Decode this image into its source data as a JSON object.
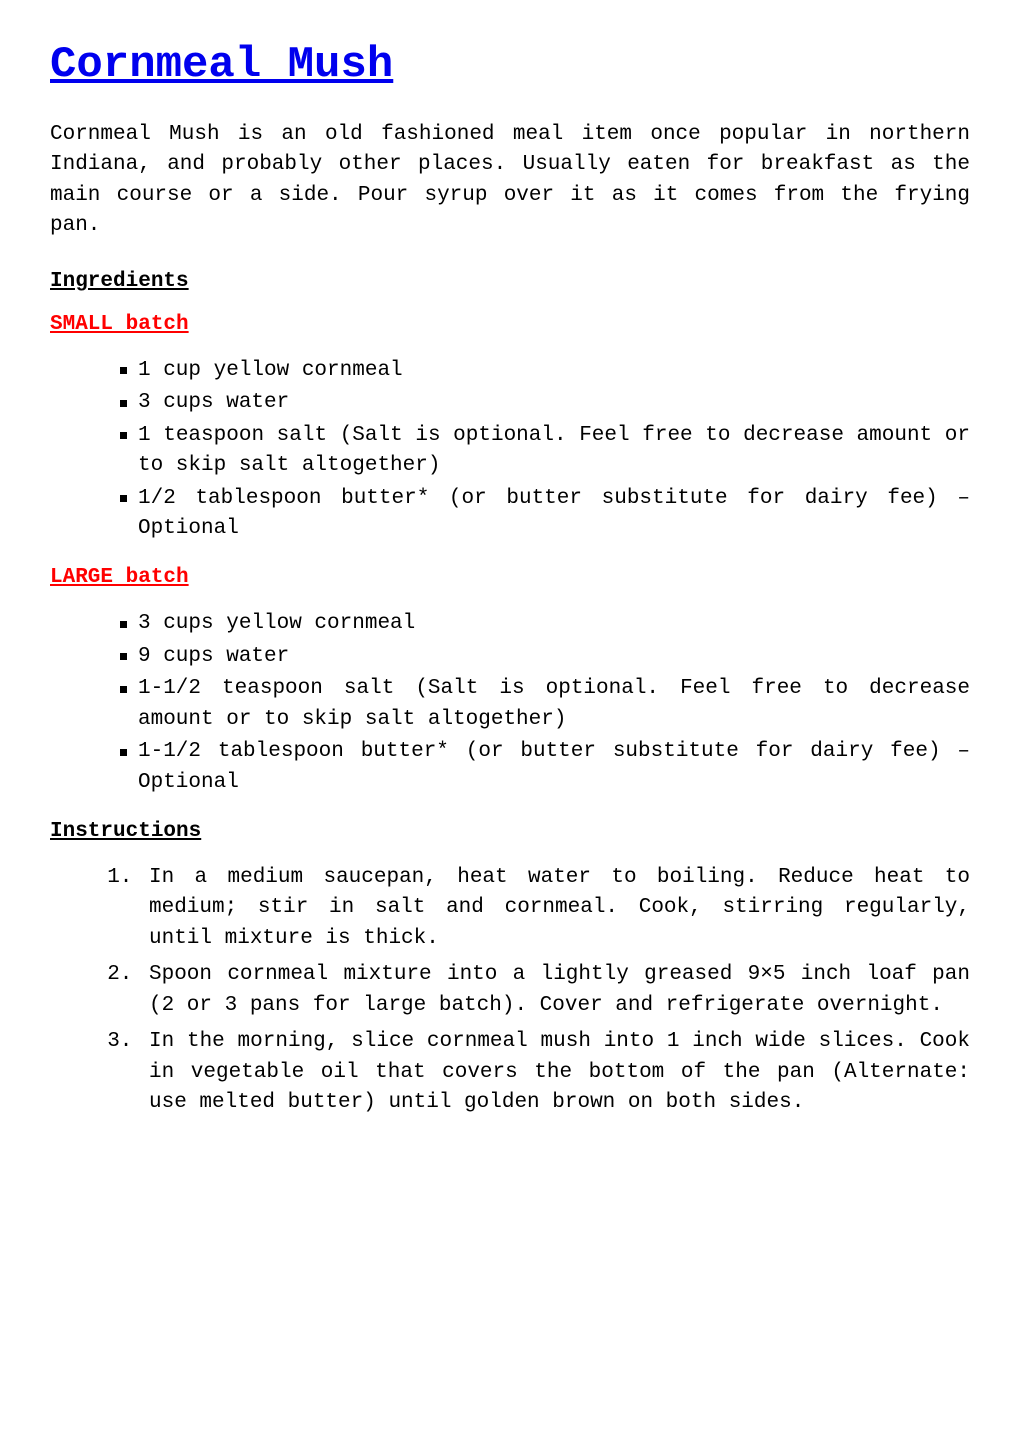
{
  "title": "Cornmeal Mush",
  "intro": "Cornmeal Mush is an old fashioned meal item once popular in northern Indiana, and probably other places. Usually eaten for breakfast as the main course or a side. Pour syrup over it as it comes from the frying pan.",
  "labels": {
    "ingredients": "Ingredients",
    "small_batch": "SMALL batch",
    "large_batch": "LARGE batch",
    "instructions": "Instructions"
  },
  "small_batch": [
    "1 cup yellow cornmeal",
    "3 cups water",
    "1 teaspoon salt (Salt is optional. Feel free to decrease amount or to skip salt altogether)",
    "1/2 tablespoon butter* (or butter substitute for dairy fee) – Optional"
  ],
  "large_batch": [
    "3 cups yellow cornmeal",
    "9 cups water",
    "1-1/2 teaspoon salt (Salt is optional. Feel free to decrease amount or to skip salt altogether)",
    "1-1/2 tablespoon butter* (or butter substitute for dairy fee) – Optional"
  ],
  "steps": [
    "In a medium saucepan, heat water to boiling. Reduce heat to medium; stir in salt and cornmeal. Cook, stirring regularly, until mixture is thick.",
    "Spoon cornmeal mixture into a lightly greased 9×5 inch loaf pan (2 or 3 pans for large batch). Cover and refrigerate overnight.",
    "In the morning,  slice cornmeal mush into 1 inch wide slices. Cook in vegetable oil that covers the bottom of the pan (Alternate: use melted butter) until golden brown on both sides."
  ],
  "colors": {
    "link": "#0000ee",
    "accent": "#ff0000",
    "text": "#000000",
    "background": "#ffffff"
  }
}
